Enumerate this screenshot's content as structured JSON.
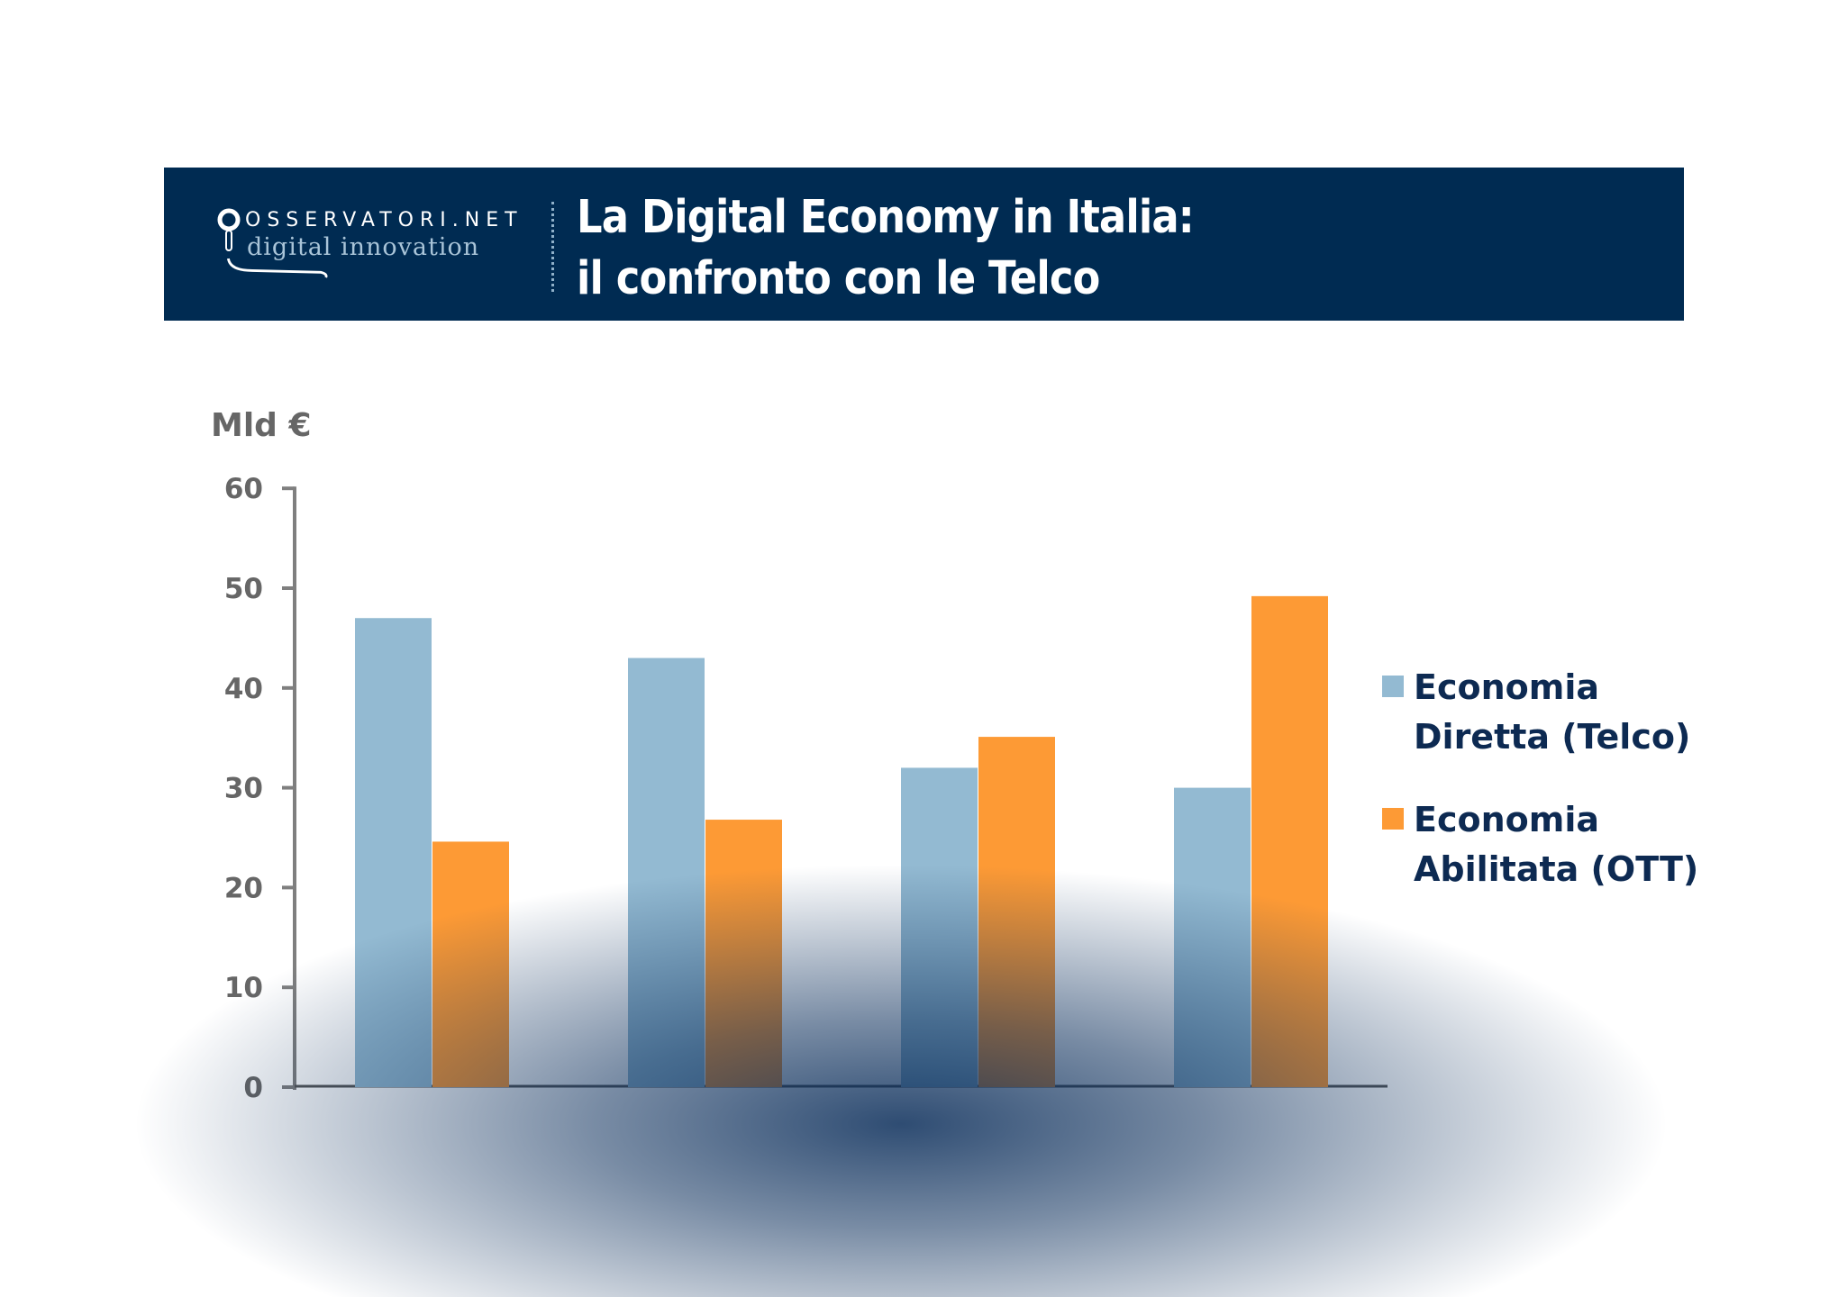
{
  "header": {
    "logo_brand": "OSSERVATORI.NET",
    "logo_sub": "digital innovation",
    "title_line1": "La Digital Economy in Italia:",
    "title_line2": "il confronto con le Telco"
  },
  "chart_data": {
    "type": "bar",
    "ylabel": "Mld €",
    "ylim": [
      0,
      60
    ],
    "yticks": [
      0,
      10,
      20,
      30,
      40,
      50,
      60
    ],
    "categories": [
      "",
      "",
      "",
      ""
    ],
    "series": [
      {
        "name": "Economia Diretta (Telco)",
        "legend_lines": [
          "Economia",
          "Diretta (Telco)"
        ],
        "color": "#93bad2",
        "values": [
          47,
          43,
          32,
          30
        ]
      },
      {
        "name": "Economia Abilitata (OTT)",
        "legend_lines": [
          "Economia",
          "Abilitata (OTT)"
        ],
        "color": "#fd9a35",
        "values": [
          24.6,
          26.8,
          35.1,
          49.2
        ]
      }
    ],
    "legend_position": "right",
    "grid": false
  },
  "colors": {
    "header_bg": "#002b52",
    "axis": "#7f7f7f"
  }
}
